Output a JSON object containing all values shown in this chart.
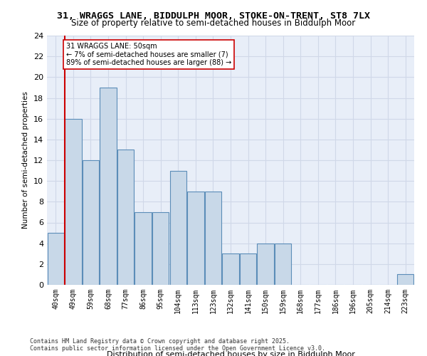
{
  "title_line1": "31, WRAGGS LANE, BIDDULPH MOOR, STOKE-ON-TRENT, ST8 7LX",
  "title_line2": "Size of property relative to semi-detached houses in Biddulph Moor",
  "xlabel": "Distribution of semi-detached houses by size in Biddulph Moor",
  "ylabel": "Number of semi-detached properties",
  "footer": "Contains HM Land Registry data © Crown copyright and database right 2025.\nContains public sector information licensed under the Open Government Licence v3.0.",
  "bins": [
    "40sqm",
    "49sqm",
    "59sqm",
    "68sqm",
    "77sqm",
    "86sqm",
    "95sqm",
    "104sqm",
    "113sqm",
    "123sqm",
    "132sqm",
    "141sqm",
    "150sqm",
    "159sqm",
    "168sqm",
    "177sqm",
    "186sqm",
    "196sqm",
    "205sqm",
    "214sqm",
    "223sqm"
  ],
  "values": [
    5,
    16,
    12,
    19,
    13,
    7,
    7,
    11,
    9,
    9,
    3,
    3,
    4,
    4,
    0,
    0,
    0,
    0,
    0,
    0,
    1
  ],
  "bar_color": "#c8d8e8",
  "bar_edge_color": "#5b8db8",
  "grid_color": "#d0d8e8",
  "background_color": "#e8eef8",
  "property_line_color": "#cc0000",
  "property_line_x": 0.5,
  "annotation_text": "31 WRAGGS LANE: 50sqm\n← 7% of semi-detached houses are smaller (7)\n89% of semi-detached houses are larger (88) →",
  "annotation_box_color": "#ffffff",
  "annotation_box_edge_color": "#cc0000",
  "ylim": [
    0,
    24
  ],
  "yticks": [
    0,
    2,
    4,
    6,
    8,
    10,
    12,
    14,
    16,
    18,
    20,
    22,
    24
  ]
}
